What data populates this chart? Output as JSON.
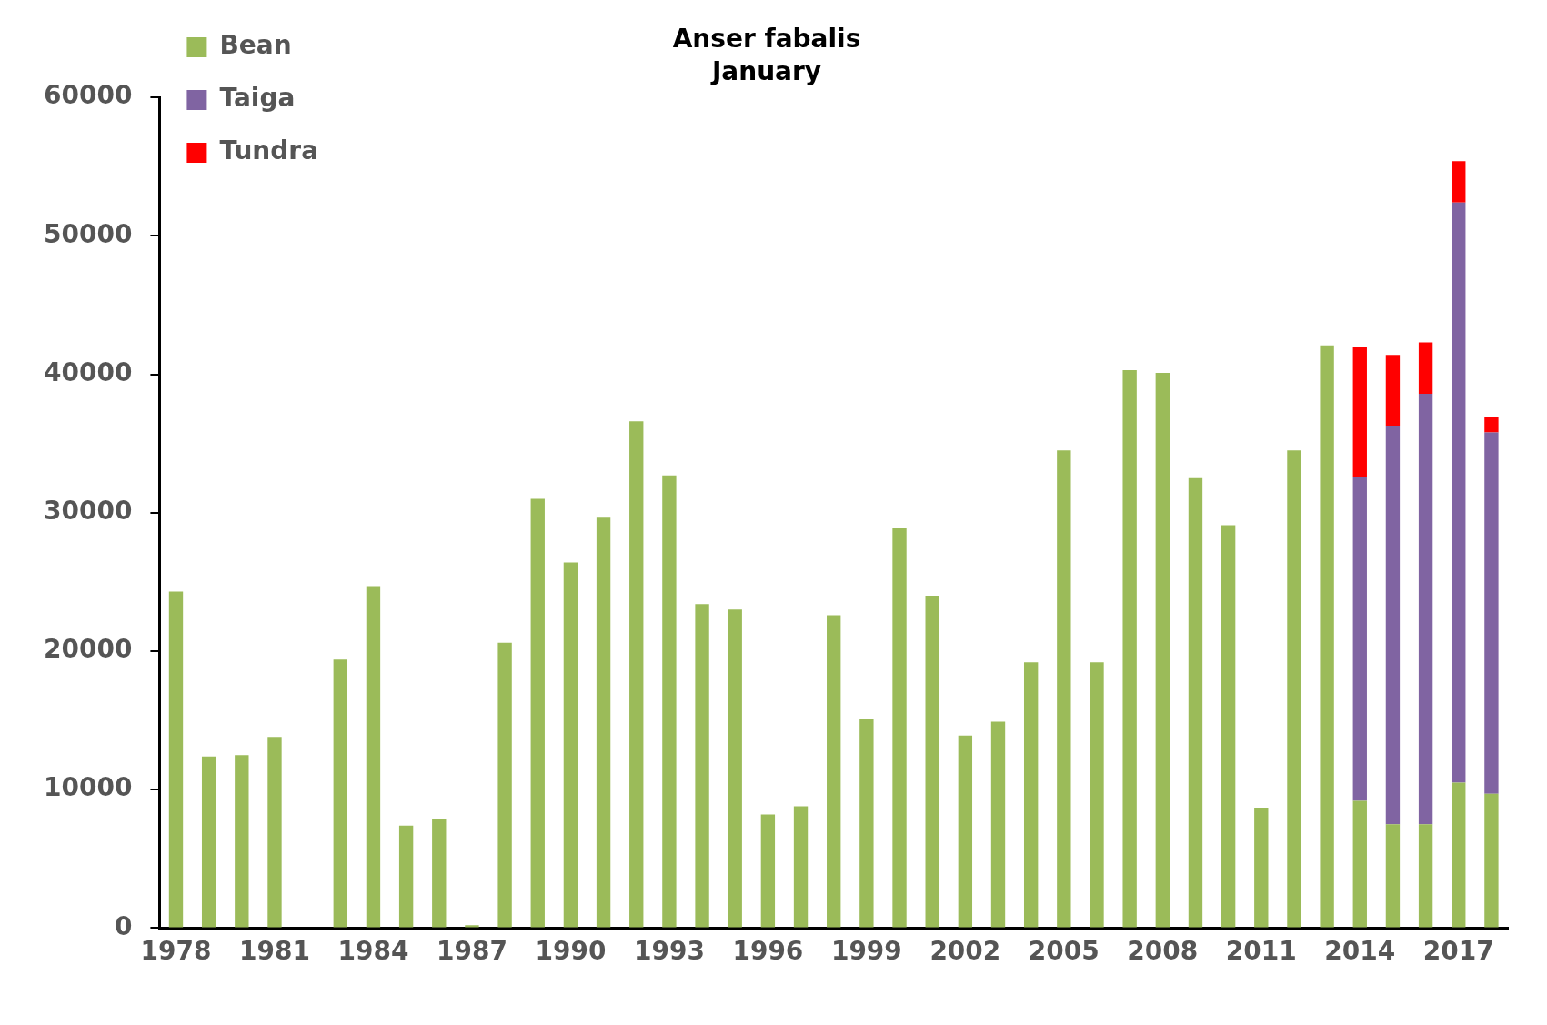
{
  "chart_data": {
    "type": "bar",
    "title": "Anser fabalis",
    "subtitle": "January",
    "stacked": true,
    "legend": "top left",
    "grid": false,
    "categories": [
      "1978",
      null,
      null,
      "1981",
      null,
      null,
      "1984",
      null,
      null,
      "1987",
      null,
      null,
      "1990",
      null,
      null,
      "1993",
      null,
      null,
      "1996",
      null,
      null,
      "1999",
      null,
      null,
      "2002",
      null,
      null,
      "2005",
      null,
      null,
      "2008",
      null,
      null,
      "2011",
      null,
      null,
      "2014",
      null,
      null,
      "2017",
      null
    ],
    "ylim": [
      0,
      60000
    ],
    "yticks": [
      0,
      10000,
      20000,
      30000,
      40000,
      50000,
      60000
    ],
    "series": [
      {
        "name": "Bean",
        "color": "#9bbb59",
        "values": [
          24300,
          12400,
          12500,
          13800,
          0,
          19400,
          24700,
          7400,
          7900,
          200,
          20600,
          31000,
          26400,
          29700,
          36600,
          32700,
          23400,
          23000,
          8200,
          8800,
          22600,
          15100,
          28900,
          24000,
          13900,
          14900,
          19200,
          34500,
          19200,
          40300,
          40100,
          32500,
          29100,
          8700,
          34500,
          42100,
          9200,
          7500,
          7500,
          10500,
          9700
        ]
      },
      {
        "name": "Taiga",
        "color": "#8064a2",
        "values": [
          null,
          null,
          null,
          null,
          null,
          null,
          null,
          null,
          null,
          null,
          null,
          null,
          null,
          null,
          null,
          null,
          null,
          null,
          null,
          null,
          null,
          null,
          null,
          null,
          null,
          null,
          null,
          null,
          null,
          null,
          null,
          null,
          null,
          null,
          null,
          null,
          23400,
          28800,
          31100,
          41900,
          26100
        ]
      },
      {
        "name": "Tundra",
        "color": "#ff0000",
        "values": [
          null,
          null,
          null,
          null,
          null,
          null,
          null,
          null,
          null,
          null,
          null,
          null,
          null,
          null,
          null,
          null,
          null,
          null,
          null,
          null,
          null,
          null,
          null,
          null,
          null,
          null,
          null,
          null,
          null,
          null,
          null,
          null,
          null,
          null,
          null,
          null,
          9400,
          5100,
          3700,
          3000,
          1100
        ]
      }
    ]
  }
}
